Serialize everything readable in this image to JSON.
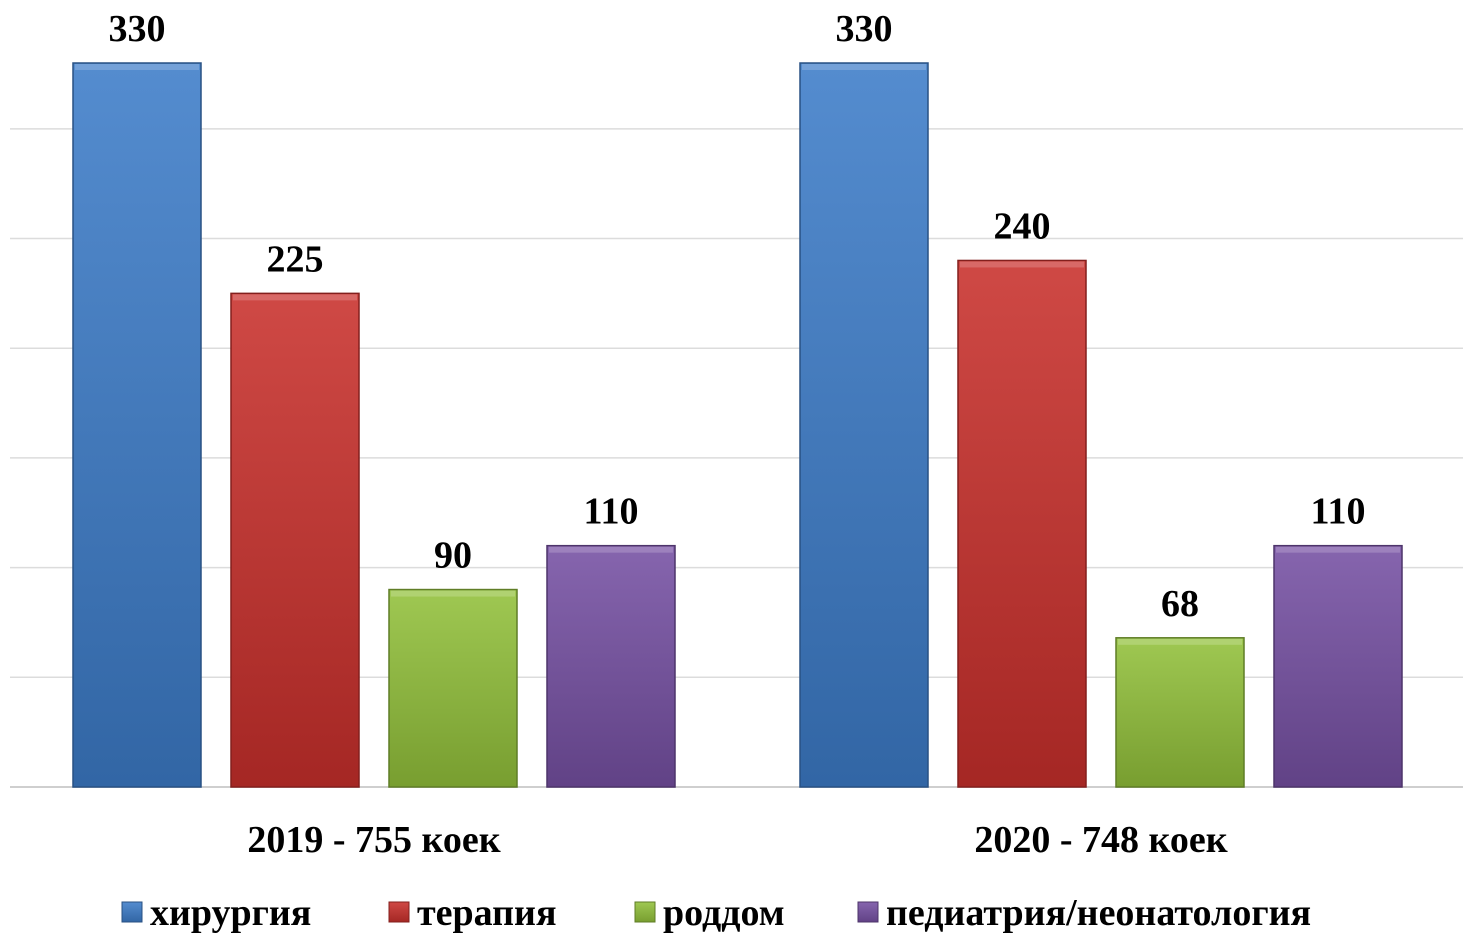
{
  "chart_data": {
    "type": "bar",
    "title": "",
    "xlabel": "",
    "ylabel": "",
    "categories": [
      "2019 - 755 коек",
      "2020 - 748 коек"
    ],
    "series": [
      {
        "name": "хирургия",
        "values": [
          330,
          330
        ],
        "color": "#3d7cc9"
      },
      {
        "name": "терапия",
        "values": [
          225,
          240
        ],
        "color": "#c9302c"
      },
      {
        "name": "роддом",
        "values": [
          90,
          68
        ],
        "color": "#92c13a"
      },
      {
        "name": "педиатрия/неонатология",
        "values": [
          110,
          110
        ],
        "color": "#7650a3"
      }
    ],
    "ylim": [
      0,
      330
    ],
    "y_gridline_step": 50,
    "grid": true,
    "y_axis_visible": false,
    "legend": "bottom",
    "data_labels": true
  }
}
